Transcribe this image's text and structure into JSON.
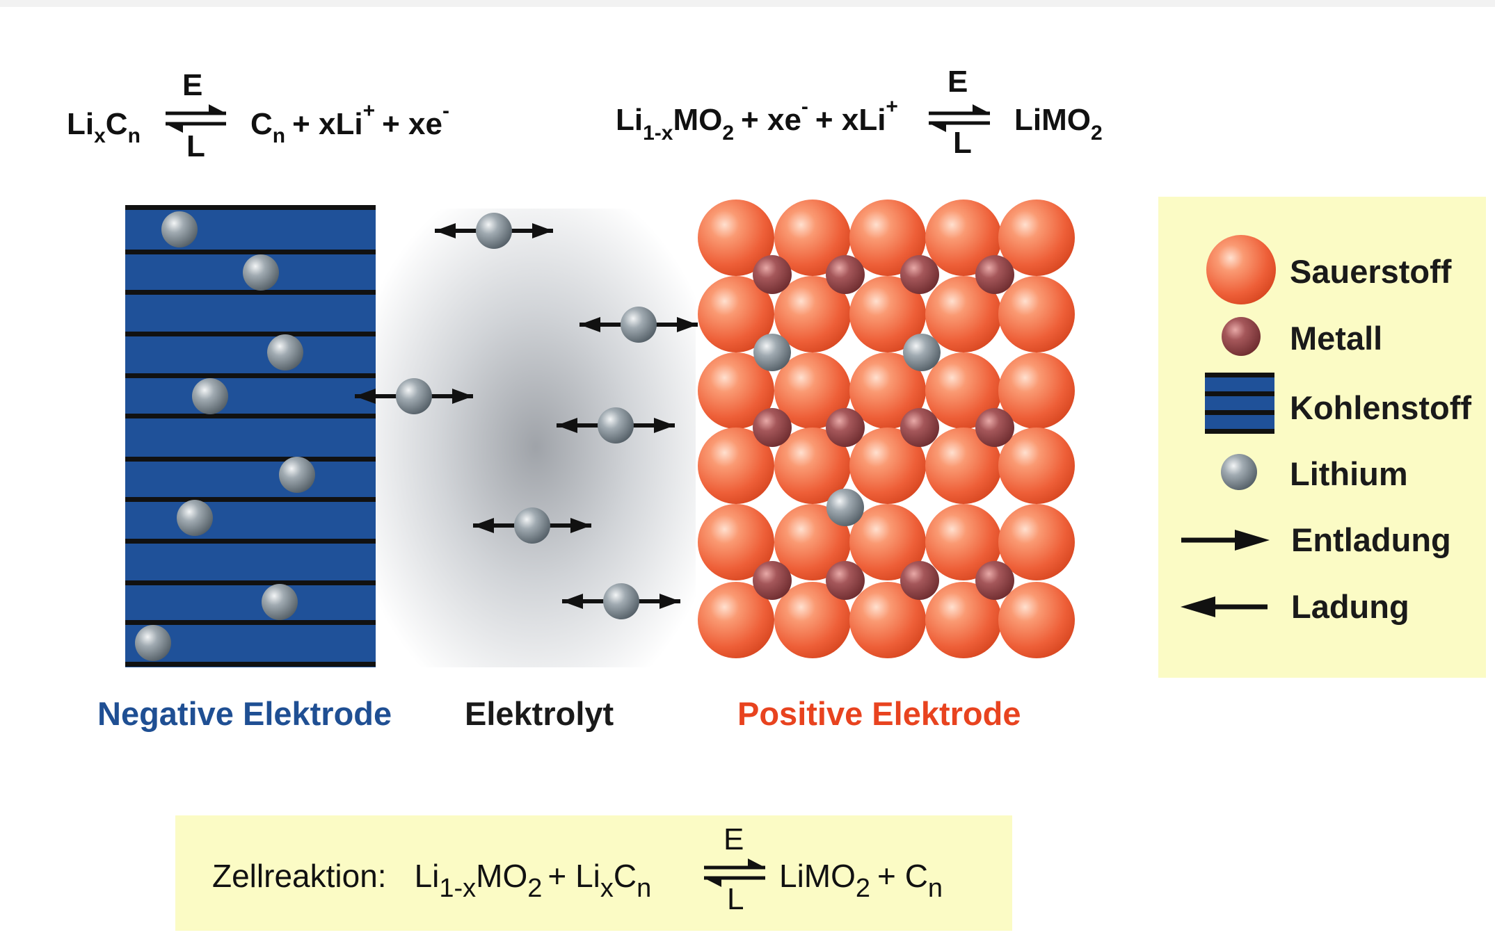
{
  "equations": {
    "negative": {
      "lhs_main": "Li",
      "lhs_sub1": "x",
      "lhs_main2": "C",
      "lhs_sub2": "n",
      "arrow_top": "E",
      "arrow_bottom": "L",
      "rhs_c": "C",
      "rhs_c_sub": "n",
      "rhs_plus1": "+ xLi",
      "rhs_plus_sup": "+",
      "rhs_plus2": "+ xe",
      "rhs_minus_sup": "-"
    },
    "positive": {
      "lhs_main": "Li",
      "lhs_sub": "1-x",
      "lhs_mo": "MO",
      "lhs_mo_sub": "2",
      "lhs_xe": "+ xe",
      "lhs_xe_sup": "-",
      "lhs_xli": "+ xLi",
      "lhs_xli_sup": "+",
      "arrow_top": "E",
      "arrow_bottom": "L",
      "rhs_main": "LiMO",
      "rhs_sub": "2"
    }
  },
  "labels": {
    "negative": "Negative Elektrode",
    "electrolyte": "Elektrolyt",
    "positive": "Positive Elektrode"
  },
  "legend": {
    "oxygen": "Sauerstoff",
    "metal": "Metall",
    "carbon": "Kohlenstoff",
    "lithium": "Lithium",
    "discharge": "Entladung",
    "charge": "Ladung"
  },
  "cell_reaction": {
    "prefix": "Zellreaktion:",
    "li": "Li",
    "li_sub": "1-x",
    "mo": "MO",
    "mo_sub": "2",
    "plus1": "+ Li",
    "x_sub": "x",
    "c": "C",
    "c_sub": "n",
    "arrow_top": "E",
    "arrow_bottom": "L",
    "rhs": "LiMO",
    "rhs_sub": "2",
    "plus2": "+ C",
    "rhs_c_sub": "n"
  },
  "colors": {
    "negative": "#1f4f93",
    "electrode_blue": "#1f5199",
    "positive": "#e8431f",
    "oxygen": "#f2734f",
    "metal": "#8e4345",
    "lithium": "#7d8a93",
    "legend_bg": "#fbfbc5"
  }
}
